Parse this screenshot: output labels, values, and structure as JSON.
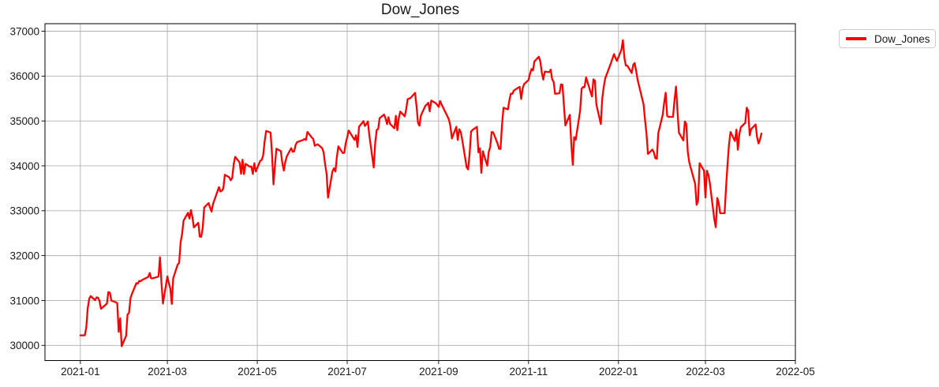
{
  "title": "Dow_Jones",
  "legend": {
    "label": "Dow_Jones"
  },
  "colors": {
    "line": "#ff0000",
    "grid": "#b0b0b0",
    "spine": "#000000",
    "text": "#1a1a1a",
    "background": "#ffffff"
  },
  "axes": {
    "x_ticks": [
      {
        "date": "2021-01-01",
        "label": "2021-01"
      },
      {
        "date": "2021-03-01",
        "label": "2021-03"
      },
      {
        "date": "2021-05-01",
        "label": "2021-05"
      },
      {
        "date": "2021-07-01",
        "label": "2021-07"
      },
      {
        "date": "2021-09-01",
        "label": "2021-09"
      },
      {
        "date": "2021-11-01",
        "label": "2021-11"
      },
      {
        "date": "2022-01-01",
        "label": "2022-01"
      },
      {
        "date": "2022-03-01",
        "label": "2022-03"
      },
      {
        "date": "2022-05-01",
        "label": "2022-05"
      }
    ],
    "y_ticks": [
      {
        "value": 30000,
        "label": "30000"
      },
      {
        "value": 31000,
        "label": "31000"
      },
      {
        "value": 32000,
        "label": "32000"
      },
      {
        "value": 33000,
        "label": "33000"
      },
      {
        "value": 34000,
        "label": "34000"
      },
      {
        "value": 35000,
        "label": "35000"
      },
      {
        "value": 36000,
        "label": "36000"
      },
      {
        "value": 37000,
        "label": "37000"
      }
    ]
  },
  "chart_data": {
    "type": "line",
    "title": "Dow_Jones",
    "series_name": "Dow_Jones",
    "xlabel": "",
    "ylabel": "",
    "grid": true,
    "legend_position": "upper right outside",
    "xlim": [
      "2020-12-08",
      "2022-05-01"
    ],
    "ylim": [
      29662,
      37167
    ],
    "points": [
      [
        "2021-01-01",
        30224
      ],
      [
        "2021-01-04",
        30224
      ],
      [
        "2021-01-05",
        30392
      ],
      [
        "2021-01-06",
        30829
      ],
      [
        "2021-01-07",
        31041
      ],
      [
        "2021-01-08",
        31098
      ],
      [
        "2021-01-11",
        31009
      ],
      [
        "2021-01-12",
        31069
      ],
      [
        "2021-01-13",
        31061
      ],
      [
        "2021-01-14",
        30991
      ],
      [
        "2021-01-15",
        30814
      ],
      [
        "2021-01-19",
        30931
      ],
      [
        "2021-01-20",
        31188
      ],
      [
        "2021-01-21",
        31176
      ],
      [
        "2021-01-22",
        30997
      ],
      [
        "2021-01-25",
        30960
      ],
      [
        "2021-01-26",
        30937
      ],
      [
        "2021-01-27",
        30303
      ],
      [
        "2021-01-28",
        30603
      ],
      [
        "2021-01-29",
        29983
      ],
      [
        "2021-02-01",
        30212
      ],
      [
        "2021-02-02",
        30687
      ],
      [
        "2021-02-03",
        30724
      ],
      [
        "2021-02-04",
        31056
      ],
      [
        "2021-02-05",
        31148
      ],
      [
        "2021-02-08",
        31386
      ],
      [
        "2021-02-09",
        31376
      ],
      [
        "2021-02-10",
        31438
      ],
      [
        "2021-02-11",
        31430
      ],
      [
        "2021-02-12",
        31458
      ],
      [
        "2021-02-16",
        31523
      ],
      [
        "2021-02-17",
        31613
      ],
      [
        "2021-02-18",
        31493
      ],
      [
        "2021-02-19",
        31494
      ],
      [
        "2021-02-22",
        31522
      ],
      [
        "2021-02-23",
        31537
      ],
      [
        "2021-02-24",
        31962
      ],
      [
        "2021-02-25",
        31402
      ],
      [
        "2021-02-26",
        30932
      ],
      [
        "2021-03-01",
        31536
      ],
      [
        "2021-03-02",
        31392
      ],
      [
        "2021-03-03",
        31270
      ],
      [
        "2021-03-04",
        30924
      ],
      [
        "2021-03-05",
        31496
      ],
      [
        "2021-03-08",
        31802
      ],
      [
        "2021-03-09",
        31833
      ],
      [
        "2021-03-10",
        32297
      ],
      [
        "2021-03-11",
        32486
      ],
      [
        "2021-03-12",
        32779
      ],
      [
        "2021-03-15",
        32953
      ],
      [
        "2021-03-16",
        32826
      ],
      [
        "2021-03-17",
        33015
      ],
      [
        "2021-03-18",
        32862
      ],
      [
        "2021-03-19",
        32628
      ],
      [
        "2021-03-22",
        32731
      ],
      [
        "2021-03-23",
        32423
      ],
      [
        "2021-03-24",
        32420
      ],
      [
        "2021-03-25",
        32619
      ],
      [
        "2021-03-26",
        33073
      ],
      [
        "2021-03-29",
        33171
      ],
      [
        "2021-03-30",
        33066
      ],
      [
        "2021-03-31",
        32982
      ],
      [
        "2021-04-01",
        33153
      ],
      [
        "2021-04-05",
        33527
      ],
      [
        "2021-04-06",
        33430
      ],
      [
        "2021-04-07",
        33446
      ],
      [
        "2021-04-08",
        33504
      ],
      [
        "2021-04-09",
        33801
      ],
      [
        "2021-04-12",
        33745
      ],
      [
        "2021-04-13",
        33677
      ],
      [
        "2021-04-14",
        33731
      ],
      [
        "2021-04-15",
        34036
      ],
      [
        "2021-04-16",
        34201
      ],
      [
        "2021-04-19",
        34078
      ],
      [
        "2021-04-20",
        33821
      ],
      [
        "2021-04-21",
        34137
      ],
      [
        "2021-04-22",
        33815
      ],
      [
        "2021-04-23",
        34043
      ],
      [
        "2021-04-26",
        33981
      ],
      [
        "2021-04-27",
        33985
      ],
      [
        "2021-04-28",
        33820
      ],
      [
        "2021-04-29",
        34060
      ],
      [
        "2021-04-30",
        33875
      ],
      [
        "2021-05-03",
        34113
      ],
      [
        "2021-05-04",
        34133
      ],
      [
        "2021-05-05",
        34230
      ],
      [
        "2021-05-06",
        34548
      ],
      [
        "2021-05-07",
        34778
      ],
      [
        "2021-05-10",
        34743
      ],
      [
        "2021-05-11",
        34269
      ],
      [
        "2021-05-12",
        33588
      ],
      [
        "2021-05-13",
        34021
      ],
      [
        "2021-05-14",
        34382
      ],
      [
        "2021-05-17",
        34328
      ],
      [
        "2021-05-18",
        34061
      ],
      [
        "2021-05-19",
        33896
      ],
      [
        "2021-05-20",
        34084
      ],
      [
        "2021-05-21",
        34208
      ],
      [
        "2021-05-24",
        34394
      ],
      [
        "2021-05-25",
        34312
      ],
      [
        "2021-05-26",
        34323
      ],
      [
        "2021-05-27",
        34465
      ],
      [
        "2021-05-28",
        34529
      ],
      [
        "2021-06-01",
        34575
      ],
      [
        "2021-06-02",
        34600
      ],
      [
        "2021-06-03",
        34577
      ],
      [
        "2021-06-04",
        34756
      ],
      [
        "2021-06-07",
        34630
      ],
      [
        "2021-06-08",
        34600
      ],
      [
        "2021-06-09",
        34447
      ],
      [
        "2021-06-10",
        34466
      ],
      [
        "2021-06-11",
        34480
      ],
      [
        "2021-06-14",
        34393
      ],
      [
        "2021-06-15",
        34299
      ],
      [
        "2021-06-16",
        34034
      ],
      [
        "2021-06-17",
        33823
      ],
      [
        "2021-06-18",
        33290
      ],
      [
        "2021-06-21",
        33876
      ],
      [
        "2021-06-22",
        33945
      ],
      [
        "2021-06-23",
        33874
      ],
      [
        "2021-06-24",
        34196
      ],
      [
        "2021-06-25",
        34434
      ],
      [
        "2021-06-28",
        34283
      ],
      [
        "2021-06-29",
        34292
      ],
      [
        "2021-06-30",
        34503
      ],
      [
        "2021-07-01",
        34634
      ],
      [
        "2021-07-02",
        34786
      ],
      [
        "2021-07-06",
        34577
      ],
      [
        "2021-07-07",
        34682
      ],
      [
        "2021-07-08",
        34422
      ],
      [
        "2021-07-09",
        34870
      ],
      [
        "2021-07-12",
        34996
      ],
      [
        "2021-07-13",
        34889
      ],
      [
        "2021-07-14",
        34933
      ],
      [
        "2021-07-15",
        34988
      ],
      [
        "2021-07-16",
        34688
      ],
      [
        "2021-07-19",
        33962
      ],
      [
        "2021-07-20",
        34512
      ],
      [
        "2021-07-21",
        34798
      ],
      [
        "2021-07-22",
        34823
      ],
      [
        "2021-07-23",
        35062
      ],
      [
        "2021-07-26",
        35144
      ],
      [
        "2021-07-27",
        35058
      ],
      [
        "2021-07-28",
        34931
      ],
      [
        "2021-07-29",
        35084
      ],
      [
        "2021-07-30",
        34935
      ],
      [
        "2021-08-02",
        34838
      ],
      [
        "2021-08-03",
        35116
      ],
      [
        "2021-08-04",
        34793
      ],
      [
        "2021-08-05",
        35064
      ],
      [
        "2021-08-06",
        35209
      ],
      [
        "2021-08-09",
        35102
      ],
      [
        "2021-08-10",
        35265
      ],
      [
        "2021-08-11",
        35485
      ],
      [
        "2021-08-12",
        35499
      ],
      [
        "2021-08-13",
        35515
      ],
      [
        "2021-08-16",
        35625
      ],
      [
        "2021-08-17",
        35343
      ],
      [
        "2021-08-18",
        34961
      ],
      [
        "2021-08-19",
        34894
      ],
      [
        "2021-08-20",
        35120
      ],
      [
        "2021-08-23",
        35335
      ],
      [
        "2021-08-24",
        35366
      ],
      [
        "2021-08-25",
        35405
      ],
      [
        "2021-08-26",
        35213
      ],
      [
        "2021-08-27",
        35455
      ],
      [
        "2021-08-30",
        35399
      ],
      [
        "2021-08-31",
        35361
      ],
      [
        "2021-09-01",
        35312
      ],
      [
        "2021-09-02",
        35444
      ],
      [
        "2021-09-03",
        35369
      ],
      [
        "2021-09-07",
        35100
      ],
      [
        "2021-09-08",
        35031
      ],
      [
        "2021-09-09",
        34879
      ],
      [
        "2021-09-10",
        34608
      ],
      [
        "2021-09-13",
        34870
      ],
      [
        "2021-09-14",
        34577
      ],
      [
        "2021-09-15",
        34814
      ],
      [
        "2021-09-16",
        34751
      ],
      [
        "2021-09-17",
        34585
      ],
      [
        "2021-09-20",
        33970
      ],
      [
        "2021-09-21",
        33920
      ],
      [
        "2021-09-22",
        34258
      ],
      [
        "2021-09-23",
        34765
      ],
      [
        "2021-09-24",
        34798
      ],
      [
        "2021-09-27",
        34869
      ],
      [
        "2021-09-28",
        34300
      ],
      [
        "2021-09-29",
        34390
      ],
      [
        "2021-09-30",
        33844
      ],
      [
        "2021-10-01",
        34326
      ],
      [
        "2021-10-04",
        34003
      ],
      [
        "2021-10-05",
        34315
      ],
      [
        "2021-10-06",
        34417
      ],
      [
        "2021-10-07",
        34755
      ],
      [
        "2021-10-08",
        34746
      ],
      [
        "2021-10-11",
        34496
      ],
      [
        "2021-10-12",
        34378
      ],
      [
        "2021-10-13",
        34377
      ],
      [
        "2021-10-14",
        34913
      ],
      [
        "2021-10-15",
        35295
      ],
      [
        "2021-10-18",
        35258
      ],
      [
        "2021-10-19",
        35457
      ],
      [
        "2021-10-20",
        35609
      ],
      [
        "2021-10-21",
        35603
      ],
      [
        "2021-10-22",
        35677
      ],
      [
        "2021-10-25",
        35741
      ],
      [
        "2021-10-26",
        35757
      ],
      [
        "2021-10-27",
        35490
      ],
      [
        "2021-10-28",
        35730
      ],
      [
        "2021-10-29",
        35820
      ],
      [
        "2021-11-01",
        35914
      ],
      [
        "2021-11-02",
        36053
      ],
      [
        "2021-11-03",
        36158
      ],
      [
        "2021-11-04",
        36124
      ],
      [
        "2021-11-05",
        36328
      ],
      [
        "2021-11-08",
        36432
      ],
      [
        "2021-11-09",
        36320
      ],
      [
        "2021-11-10",
        36080
      ],
      [
        "2021-11-11",
        35921
      ],
      [
        "2021-11-12",
        36100
      ],
      [
        "2021-11-15",
        36087
      ],
      [
        "2021-11-16",
        36142
      ],
      [
        "2021-11-17",
        35931
      ],
      [
        "2021-11-18",
        35871
      ],
      [
        "2021-11-19",
        35602
      ],
      [
        "2021-11-22",
        35619
      ],
      [
        "2021-11-23",
        35814
      ],
      [
        "2021-11-24",
        35805
      ],
      [
        "2021-11-26",
        34899
      ],
      [
        "2021-11-29",
        35136
      ],
      [
        "2021-11-30",
        34484
      ],
      [
        "2021-12-01",
        34022
      ],
      [
        "2021-12-02",
        34640
      ],
      [
        "2021-12-03",
        34580
      ],
      [
        "2021-12-06",
        35227
      ],
      [
        "2021-12-07",
        35719
      ],
      [
        "2021-12-08",
        35755
      ],
      [
        "2021-12-09",
        35754
      ],
      [
        "2021-12-10",
        35971
      ],
      [
        "2021-12-13",
        35651
      ],
      [
        "2021-12-14",
        35545
      ],
      [
        "2021-12-15",
        35927
      ],
      [
        "2021-12-16",
        35898
      ],
      [
        "2021-12-17",
        35365
      ],
      [
        "2021-12-20",
        34932
      ],
      [
        "2021-12-21",
        35492
      ],
      [
        "2021-12-22",
        35754
      ],
      [
        "2021-12-23",
        35950
      ],
      [
        "2021-12-27",
        36302
      ],
      [
        "2021-12-28",
        36399
      ],
      [
        "2021-12-29",
        36489
      ],
      [
        "2021-12-30",
        36398
      ],
      [
        "2021-12-31",
        36338
      ],
      [
        "2022-01-03",
        36585
      ],
      [
        "2022-01-04",
        36800
      ],
      [
        "2022-01-05",
        36407
      ],
      [
        "2022-01-06",
        36236
      ],
      [
        "2022-01-07",
        36232
      ],
      [
        "2022-01-10",
        36069
      ],
      [
        "2022-01-11",
        36252
      ],
      [
        "2022-01-12",
        36290
      ],
      [
        "2022-01-13",
        36114
      ],
      [
        "2022-01-14",
        35912
      ],
      [
        "2022-01-18",
        35369
      ],
      [
        "2022-01-19",
        35029
      ],
      [
        "2022-01-20",
        34715
      ],
      [
        "2022-01-21",
        34265
      ],
      [
        "2022-01-24",
        34364
      ],
      [
        "2022-01-25",
        34298
      ],
      [
        "2022-01-26",
        34168
      ],
      [
        "2022-01-27",
        34160
      ],
      [
        "2022-01-28",
        34725
      ],
      [
        "2022-01-31",
        35132
      ],
      [
        "2022-02-01",
        35405
      ],
      [
        "2022-02-02",
        35629
      ],
      [
        "2022-02-03",
        35111
      ],
      [
        "2022-02-04",
        35090
      ],
      [
        "2022-02-07",
        35091
      ],
      [
        "2022-02-08",
        35463
      ],
      [
        "2022-02-09",
        35768
      ],
      [
        "2022-02-10",
        35242
      ],
      [
        "2022-02-11",
        34738
      ],
      [
        "2022-02-14",
        34566
      ],
      [
        "2022-02-15",
        34989
      ],
      [
        "2022-02-16",
        34934
      ],
      [
        "2022-02-17",
        34312
      ],
      [
        "2022-02-18",
        34079
      ],
      [
        "2022-02-22",
        33597
      ],
      [
        "2022-02-23",
        33132
      ],
      [
        "2022-02-24",
        33224
      ],
      [
        "2022-02-25",
        34059
      ],
      [
        "2022-02-28",
        33893
      ],
      [
        "2022-03-01",
        33295
      ],
      [
        "2022-03-02",
        33891
      ],
      [
        "2022-03-03",
        33795
      ],
      [
        "2022-03-04",
        33615
      ],
      [
        "2022-03-07",
        32817
      ],
      [
        "2022-03-08",
        32632
      ],
      [
        "2022-03-09",
        33286
      ],
      [
        "2022-03-10",
        33174
      ],
      [
        "2022-03-11",
        32944
      ],
      [
        "2022-03-14",
        32945
      ],
      [
        "2022-03-15",
        33544
      ],
      [
        "2022-03-16",
        34063
      ],
      [
        "2022-03-17",
        34481
      ],
      [
        "2022-03-18",
        34755
      ],
      [
        "2022-03-21",
        34553
      ],
      [
        "2022-03-22",
        34807
      ],
      [
        "2022-03-23",
        34358
      ],
      [
        "2022-03-24",
        34708
      ],
      [
        "2022-03-25",
        34861
      ],
      [
        "2022-03-28",
        34956
      ],
      [
        "2022-03-29",
        35294
      ],
      [
        "2022-03-30",
        35229
      ],
      [
        "2022-03-31",
        34678
      ],
      [
        "2022-04-01",
        34818
      ],
      [
        "2022-04-04",
        34922
      ],
      [
        "2022-04-05",
        34641
      ],
      [
        "2022-04-06",
        34497
      ],
      [
        "2022-04-07",
        34584
      ],
      [
        "2022-04-08",
        34721
      ]
    ]
  }
}
